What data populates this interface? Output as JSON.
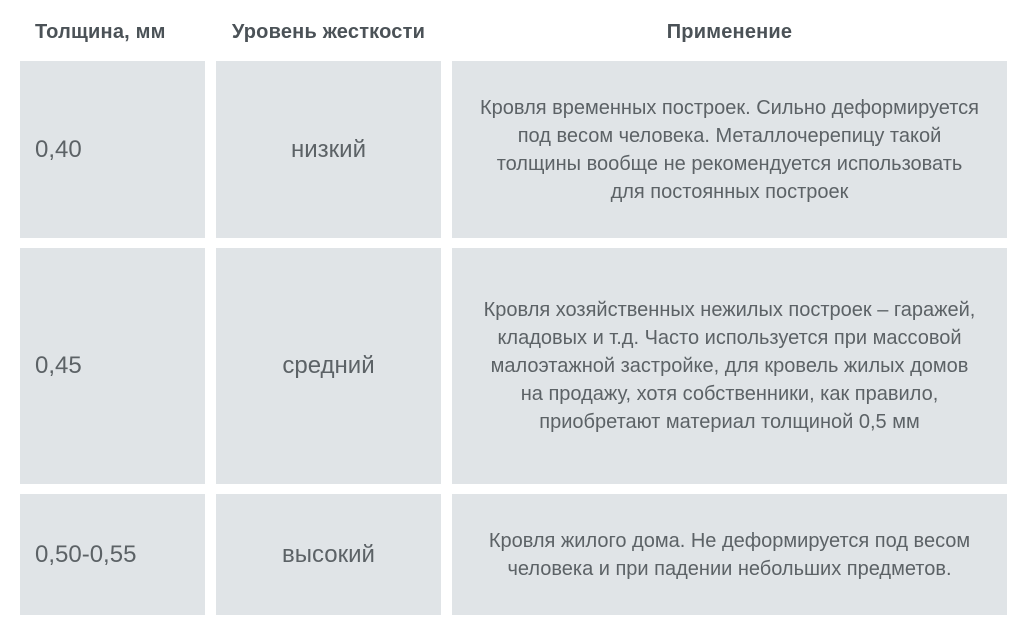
{
  "colors": {
    "page_bg": "#ffffff",
    "cell_bg": "#e0e4e7",
    "header_text": "#4b5257",
    "body_text": "#5c6266"
  },
  "table": {
    "columns": [
      {
        "id": "thickness",
        "label": "Толщина, мм"
      },
      {
        "id": "rigidity",
        "label": "Уровень жесткости"
      },
      {
        "id": "application",
        "label": "Применение"
      }
    ],
    "rows": [
      {
        "thickness": "0,40",
        "rigidity": "низкий",
        "application": "Кровля временных построек. Сильно деформируется под весом человека. Металлочерепицу такой толщины вообще не рекомендуется использовать для постоянных построек"
      },
      {
        "thickness": "0,45",
        "rigidity": "средний",
        "application": "Кровля хозяйственных нежилых построек – гаражей, кладовых и т.д. Часто используется при массовой малоэтажной застройке, для кровель жилых домов на продажу, хотя собственники, как правило, приобретают материал толщиной 0,5 мм"
      },
      {
        "thickness": "0,50-0,55",
        "rigidity": "высокий",
        "application": "Кровля жилого дома. Не деформируется под весом человека и при падении небольших предметов."
      }
    ]
  }
}
